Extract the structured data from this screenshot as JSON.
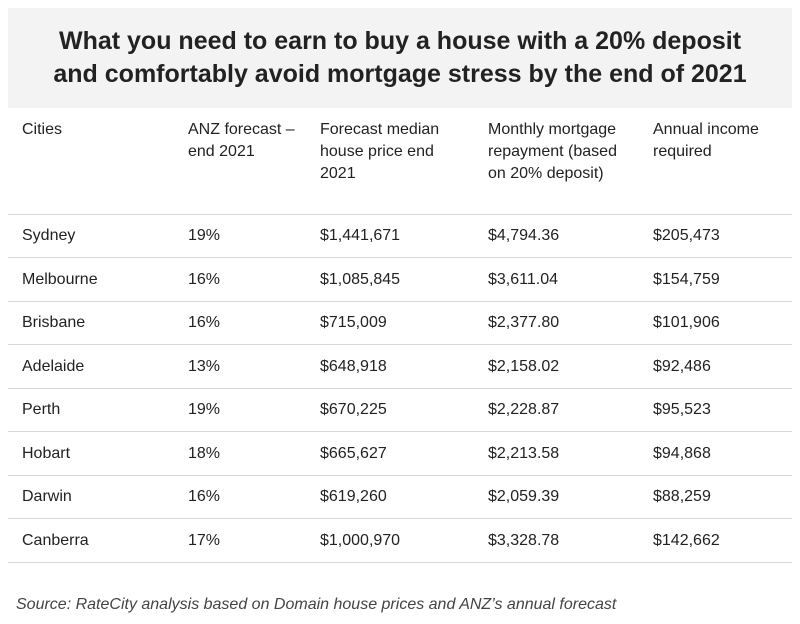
{
  "chart_data": {
    "type": "table",
    "title_lines": [
      "What you need to earn to buy a house with a 20% deposit",
      "and comfortably avoid mortgage stress by the end of 2021"
    ],
    "columns": [
      "Cities",
      "ANZ forecast – end 2021",
      "Forecast median house price end 2021",
      "Monthly mortgage repayment (based on 20% deposit)",
      "Annual income required"
    ],
    "rows": [
      [
        "Sydney",
        "19%",
        "$1,441,671",
        "$4,794.36",
        "$205,473"
      ],
      [
        "Melbourne",
        "16%",
        "$1,085,845",
        "$3,611.04",
        "$154,759"
      ],
      [
        "Brisbane",
        "16%",
        "$715,009",
        "$2,377.80",
        "$101,906"
      ],
      [
        "Adelaide",
        "13%",
        "$648,918",
        "$2,158.02",
        "$92,486"
      ],
      [
        "Perth",
        "19%",
        "$670,225",
        "$2,228.87",
        "$95,523"
      ],
      [
        "Hobart",
        "18%",
        "$665,627",
        "$2,213.58",
        "$94,868"
      ],
      [
        "Darwin",
        "16%",
        "$619,260",
        "$2,059.39",
        "$88,259"
      ],
      [
        "Canberra",
        "17%",
        "$1,000,970",
        "$3,328.78",
        "$142,662"
      ]
    ],
    "source": "Source: RateCity analysis based on Domain house prices and ANZ’s annual forecast"
  },
  "colors": {
    "title_background": "#f3f3f3",
    "text": "#222222",
    "divider": "#d8d8d8"
  }
}
